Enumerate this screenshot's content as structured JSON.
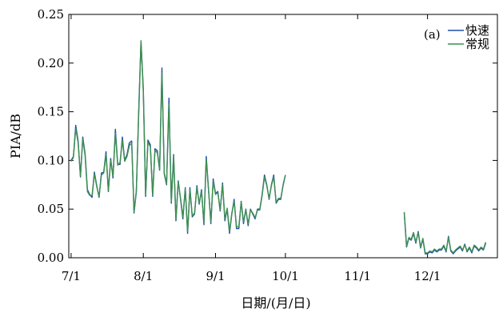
{
  "chart_data": {
    "type": "line",
    "panel_label": "(a)",
    "xlabel": "日期/(月/日)",
    "ylabel": "PIA/dB",
    "ylim": [
      0,
      0.25
    ],
    "xlim": [
      "2023-06-30",
      "2023-12-31"
    ],
    "x_ticks": [
      {
        "date": "2023-07-01",
        "label": "7/1"
      },
      {
        "date": "2023-08-01",
        "label": "8/1"
      },
      {
        "date": "2023-09-01",
        "label": "9/1"
      },
      {
        "date": "2023-10-01",
        "label": "10/1"
      },
      {
        "date": "2023-11-01",
        "label": "11/1"
      },
      {
        "date": "2023-12-01",
        "label": "12/1"
      }
    ],
    "y_ticks": [
      {
        "value": 0.0,
        "label": "0.00"
      },
      {
        "value": 0.05,
        "label": "0.05"
      },
      {
        "value": 0.1,
        "label": "0.10"
      },
      {
        "value": 0.15,
        "label": "0.15"
      },
      {
        "value": 0.2,
        "label": "0.20"
      },
      {
        "value": 0.25,
        "label": "0.25"
      }
    ],
    "grid": false,
    "legend_position": "top-right",
    "series": [
      {
        "name": "快速",
        "color": "#1f4fa6",
        "segments": [
          {
            "x": [
              "2023-07-01",
              "2023-07-02",
              "2023-07-03",
              "2023-07-04",
              "2023-07-05",
              "2023-07-06",
              "2023-07-07",
              "2023-07-08",
              "2023-07-09",
              "2023-07-10",
              "2023-07-11",
              "2023-07-12",
              "2023-07-13",
              "2023-07-14",
              "2023-07-15",
              "2023-07-16",
              "2023-07-17",
              "2023-07-18",
              "2023-07-19",
              "2023-07-20",
              "2023-07-21",
              "2023-07-22",
              "2023-07-23",
              "2023-07-24",
              "2023-07-25",
              "2023-07-26",
              "2023-07-27",
              "2023-07-28",
              "2023-07-29",
              "2023-07-30",
              "2023-07-31",
              "2023-08-01",
              "2023-08-02",
              "2023-08-03",
              "2023-08-04",
              "2023-08-05",
              "2023-08-06",
              "2023-08-07",
              "2023-08-08",
              "2023-08-09",
              "2023-08-10",
              "2023-08-11",
              "2023-08-12",
              "2023-08-13",
              "2023-08-14",
              "2023-08-15",
              "2023-08-16",
              "2023-08-17",
              "2023-08-18",
              "2023-08-19",
              "2023-08-20",
              "2023-08-21",
              "2023-08-22",
              "2023-08-23",
              "2023-08-24",
              "2023-08-25",
              "2023-08-26",
              "2023-08-27",
              "2023-08-28",
              "2023-08-29",
              "2023-08-30",
              "2023-08-31",
              "2023-09-01",
              "2023-09-02",
              "2023-09-03",
              "2023-09-04",
              "2023-09-05",
              "2023-09-06",
              "2023-09-07",
              "2023-09-08",
              "2023-09-09",
              "2023-09-10",
              "2023-09-11",
              "2023-09-12",
              "2023-09-13",
              "2023-09-14",
              "2023-09-15",
              "2023-09-16",
              "2023-09-17",
              "2023-09-18",
              "2023-09-19",
              "2023-09-20",
              "2023-09-21",
              "2023-09-22",
              "2023-09-23",
              "2023-09-24",
              "2023-09-25",
              "2023-09-26",
              "2023-09-27",
              "2023-09-28",
              "2023-09-29",
              "2023-09-30",
              "2023-10-01"
            ],
            "y": [
              0.1,
              0.104,
              0.136,
              0.12,
              0.083,
              0.124,
              0.107,
              0.07,
              0.065,
              0.062,
              0.088,
              0.074,
              0.062,
              0.087,
              0.088,
              0.109,
              0.068,
              0.102,
              0.082,
              0.132,
              0.096,
              0.096,
              0.124,
              0.1,
              0.106,
              0.118,
              0.12,
              0.046,
              0.068,
              0.15,
              0.222,
              0.174,
              0.063,
              0.121,
              0.116,
              0.063,
              0.112,
              0.11,
              0.09,
              0.195,
              0.086,
              0.075,
              0.164,
              0.056,
              0.106,
              0.038,
              0.079,
              0.06,
              0.04,
              0.072,
              0.025,
              0.072,
              0.042,
              0.045,
              0.074,
              0.055,
              0.07,
              0.034,
              0.104,
              0.07,
              0.035,
              0.081,
              0.066,
              0.068,
              0.048,
              0.077,
              0.038,
              0.05,
              0.025,
              0.045,
              0.06,
              0.03,
              0.03,
              0.058,
              0.035,
              0.05,
              0.033,
              0.05,
              0.045,
              0.04,
              0.05,
              0.05,
              0.065,
              0.085,
              0.075,
              0.06,
              0.075,
              0.085,
              0.056,
              0.06,
              0.06,
              0.075,
              0.085
            ]
          },
          {
            "x": [
              "2023-11-21",
              "2023-11-22",
              "2023-11-23",
              "2023-11-24",
              "2023-11-25",
              "2023-11-26",
              "2023-11-27",
              "2023-11-28",
              "2023-11-29",
              "2023-11-30",
              "2023-12-01",
              "2023-12-02",
              "2023-12-03",
              "2023-12-04",
              "2023-12-05",
              "2023-12-06",
              "2023-12-07",
              "2023-12-08",
              "2023-12-09",
              "2023-12-10",
              "2023-12-11",
              "2023-12-12",
              "2023-12-13",
              "2023-12-14",
              "2023-12-15",
              "2023-12-16",
              "2023-12-17",
              "2023-12-18",
              "2023-12-19",
              "2023-12-20",
              "2023-12-21",
              "2023-12-22",
              "2023-12-23",
              "2023-12-24",
              "2023-12-25",
              "2023-12-26"
            ],
            "y": [
              0.046,
              0.011,
              0.02,
              0.018,
              0.025,
              0.015,
              0.027,
              0.01,
              0.019,
              0.004,
              0.004,
              0.006,
              0.005,
              0.008,
              0.006,
              0.008,
              0.008,
              0.012,
              0.006,
              0.022,
              0.007,
              0.004,
              0.007,
              0.009,
              0.011,
              0.007,
              0.014,
              0.006,
              0.01,
              0.005,
              0.012,
              0.01,
              0.007,
              0.01,
              0.008,
              0.015
            ]
          }
        ]
      },
      {
        "name": "常规",
        "color": "#3e8f4f",
        "segments": [
          {
            "x": [
              "2023-07-01",
              "2023-07-02",
              "2023-07-03",
              "2023-07-04",
              "2023-07-05",
              "2023-07-06",
              "2023-07-07",
              "2023-07-08",
              "2023-07-09",
              "2023-07-10",
              "2023-07-11",
              "2023-07-12",
              "2023-07-13",
              "2023-07-14",
              "2023-07-15",
              "2023-07-16",
              "2023-07-17",
              "2023-07-18",
              "2023-07-19",
              "2023-07-20",
              "2023-07-21",
              "2023-07-22",
              "2023-07-23",
              "2023-07-24",
              "2023-07-25",
              "2023-07-26",
              "2023-07-27",
              "2023-07-28",
              "2023-07-29",
              "2023-07-30",
              "2023-07-31",
              "2023-08-01",
              "2023-08-02",
              "2023-08-03",
              "2023-08-04",
              "2023-08-05",
              "2023-08-06",
              "2023-08-07",
              "2023-08-08",
              "2023-08-09",
              "2023-08-10",
              "2023-08-11",
              "2023-08-12",
              "2023-08-13",
              "2023-08-14",
              "2023-08-15",
              "2023-08-16",
              "2023-08-17",
              "2023-08-18",
              "2023-08-19",
              "2023-08-20",
              "2023-08-21",
              "2023-08-22",
              "2023-08-23",
              "2023-08-24",
              "2023-08-25",
              "2023-08-26",
              "2023-08-27",
              "2023-08-28",
              "2023-08-29",
              "2023-08-30",
              "2023-08-31",
              "2023-09-01",
              "2023-09-02",
              "2023-09-03",
              "2023-09-04",
              "2023-09-05",
              "2023-09-06",
              "2023-09-07",
              "2023-09-08",
              "2023-09-09",
              "2023-09-10",
              "2023-09-11",
              "2023-09-12",
              "2023-09-13",
              "2023-09-14",
              "2023-09-15",
              "2023-09-16",
              "2023-09-17",
              "2023-09-18",
              "2023-09-19",
              "2023-09-20",
              "2023-09-21",
              "2023-09-22",
              "2023-09-23",
              "2023-09-24",
              "2023-09-25",
              "2023-09-26",
              "2023-09-27",
              "2023-09-28",
              "2023-09-29",
              "2023-09-30",
              "2023-10-01"
            ],
            "y": [
              0.099,
              0.103,
              0.133,
              0.118,
              0.084,
              0.122,
              0.105,
              0.068,
              0.064,
              0.064,
              0.086,
              0.073,
              0.063,
              0.085,
              0.087,
              0.106,
              0.069,
              0.1,
              0.084,
              0.128,
              0.095,
              0.098,
              0.121,
              0.099,
              0.104,
              0.115,
              0.118,
              0.047,
              0.069,
              0.146,
              0.223,
              0.17,
              0.065,
              0.119,
              0.114,
              0.064,
              0.11,
              0.108,
              0.091,
              0.19,
              0.087,
              0.076,
              0.158,
              0.058,
              0.104,
              0.04,
              0.078,
              0.061,
              0.042,
              0.071,
              0.027,
              0.07,
              0.043,
              0.046,
              0.072,
              0.056,
              0.068,
              0.036,
              0.101,
              0.069,
              0.037,
              0.079,
              0.065,
              0.067,
              0.049,
              0.075,
              0.04,
              0.051,
              0.027,
              0.046,
              0.058,
              0.032,
              0.032,
              0.057,
              0.037,
              0.049,
              0.035,
              0.049,
              0.046,
              0.041,
              0.049,
              0.049,
              0.064,
              0.083,
              0.074,
              0.061,
              0.074,
              0.083,
              0.057,
              0.061,
              0.061,
              0.074,
              0.085
            ]
          },
          {
            "x": [
              "2023-11-21",
              "2023-11-22",
              "2023-11-23",
              "2023-11-24",
              "2023-11-25",
              "2023-11-26",
              "2023-11-27",
              "2023-11-28",
              "2023-11-29",
              "2023-11-30",
              "2023-12-01",
              "2023-12-02",
              "2023-12-03",
              "2023-12-04",
              "2023-12-05",
              "2023-12-06",
              "2023-12-07",
              "2023-12-08",
              "2023-12-09",
              "2023-12-10",
              "2023-12-11",
              "2023-12-12",
              "2023-12-13",
              "2023-12-14",
              "2023-12-15",
              "2023-12-16",
              "2023-12-17",
              "2023-12-18",
              "2023-12-19",
              "2023-12-20",
              "2023-12-21",
              "2023-12-22",
              "2023-12-23",
              "2023-12-24",
              "2023-12-25",
              "2023-12-26"
            ],
            "y": [
              0.047,
              0.012,
              0.021,
              0.019,
              0.026,
              0.016,
              0.026,
              0.011,
              0.02,
              0.005,
              0.005,
              0.007,
              0.006,
              0.009,
              0.007,
              0.009,
              0.009,
              0.013,
              0.007,
              0.021,
              0.008,
              0.005,
              0.008,
              0.01,
              0.012,
              0.008,
              0.013,
              0.007,
              0.011,
              0.006,
              0.013,
              0.011,
              0.008,
              0.011,
              0.009,
              0.016
            ]
          }
        ]
      }
    ]
  }
}
